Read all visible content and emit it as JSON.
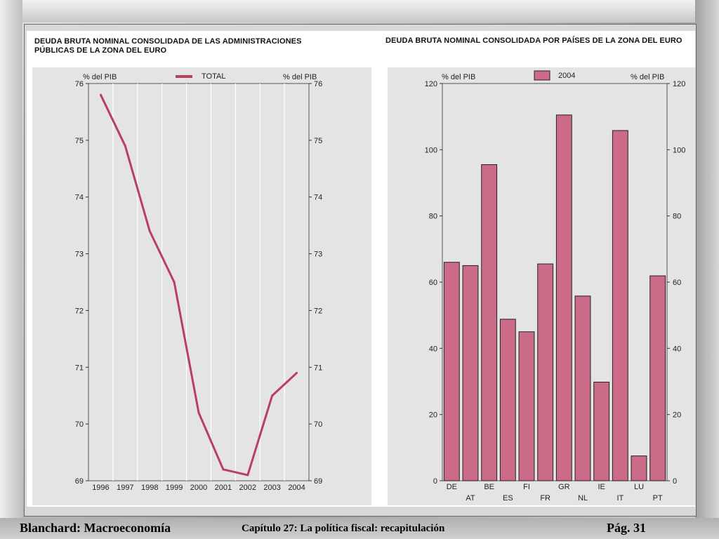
{
  "slide": {
    "left_title_line1": "DEUDA BRUTA NOMINAL CONSOLIDADA DE LAS ADMINISTRACIONES",
    "left_title_line2": "PÚBLICAS DE LA ZONA  DEL EURO",
    "right_title": "DEUDA BRUTA NOMINAL CONSOLIDADA POR PAÍSES DE LA ZONA DEL EURO"
  },
  "footer": {
    "book": "Blanchard: Macroeconomía",
    "chapter": "Capítulo 27: La política fiscal: recapitulación",
    "page": "Pág.  31"
  },
  "colors": {
    "line": "#b8405e",
    "bar_fill": "#cc6b88",
    "bar_stroke": "#222222"
  },
  "chart_data": [
    {
      "type": "line",
      "legend": "TOTAL",
      "ylabel_left": "% del PIB",
      "ylabel_right": "% del PIB",
      "x": [
        "1996",
        "1997",
        "1998",
        "1999",
        "2000",
        "2001",
        "2002",
        "2003",
        "2004"
      ],
      "series": [
        {
          "name": "TOTAL",
          "values": [
            75.8,
            74.9,
            73.4,
            72.5,
            70.2,
            69.2,
            69.1,
            70.5,
            70.9
          ]
        }
      ],
      "ylim": [
        69,
        76
      ],
      "yticks": [
        "69",
        "70",
        "71",
        "72",
        "73",
        "74",
        "75",
        "76"
      ],
      "grid": "vertical"
    },
    {
      "type": "bar",
      "legend": "2004",
      "ylabel_left": "% del PIB",
      "ylabel_right": "% del PIB",
      "categories": [
        "DE",
        "AT",
        "BE",
        "ES",
        "FI",
        "FR",
        "GR",
        "NL",
        "IE",
        "IT",
        "LU",
        "PT"
      ],
      "values": [
        66,
        65,
        95.5,
        48.8,
        45,
        65.5,
        110.5,
        55.8,
        29.8,
        105.8,
        7.5,
        61.9
      ],
      "ylim": [
        0,
        120
      ],
      "yticks": [
        "0",
        "20",
        "40",
        "60",
        "80",
        "100",
        "120"
      ]
    }
  ]
}
